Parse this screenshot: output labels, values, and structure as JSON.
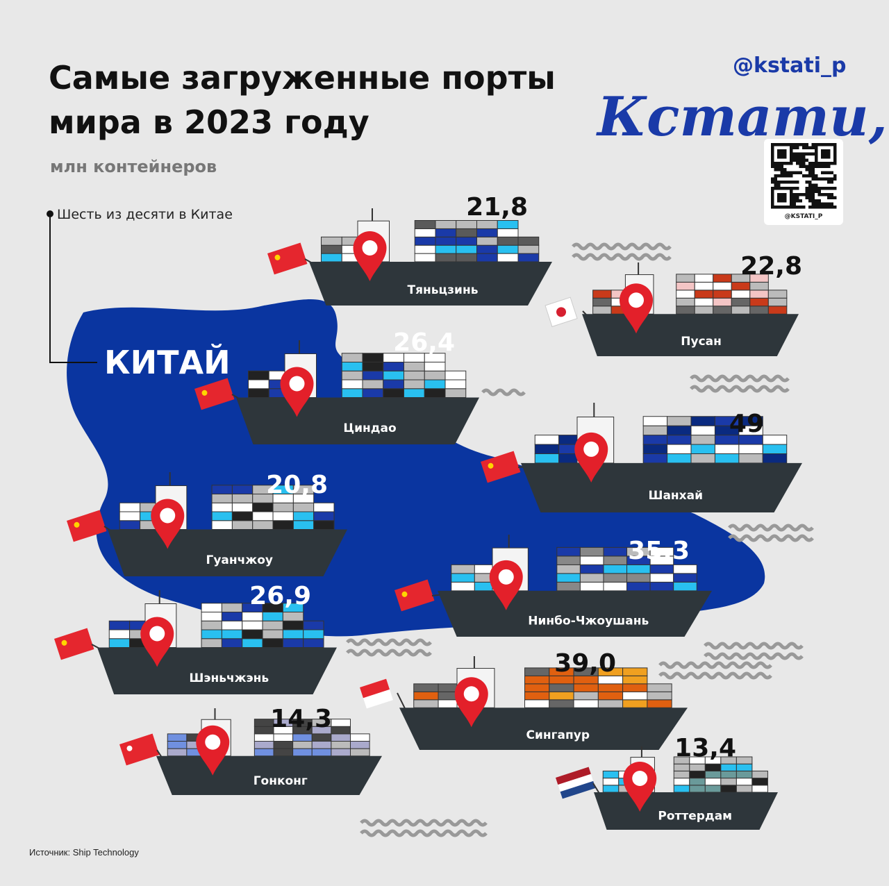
{
  "header": {
    "title_line1": "Самые загруженные порты",
    "title_line2": "мира в 2023 году",
    "subtitle": "млн контейнеров"
  },
  "brand": {
    "handle": "@kstati_p",
    "logo": "Кстати,",
    "qr_label": "@KSTATI_P"
  },
  "note": "Шесть из десяти в Китае",
  "map_label": "КИТАЙ",
  "ports": [
    {
      "name": "Тяньцзинь",
      "value": "21,8"
    },
    {
      "name": "Пусан",
      "value": "22,8"
    },
    {
      "name": "Циндао",
      "value": "26,4"
    },
    {
      "name": "Шанхай",
      "value": "49"
    },
    {
      "name": "Гуанчжоу",
      "value": "20,8"
    },
    {
      "name": "Нинбо-Чжоушань",
      "value": "35,3"
    },
    {
      "name": "Шэньчжэнь",
      "value": "26,9"
    },
    {
      "name": "Сингапур",
      "value": "39,0"
    },
    {
      "name": "Гонконг",
      "value": "14,3"
    },
    {
      "name": "Роттердам",
      "value": "13,4"
    }
  ],
  "source": "Источник: Ship Technology"
}
